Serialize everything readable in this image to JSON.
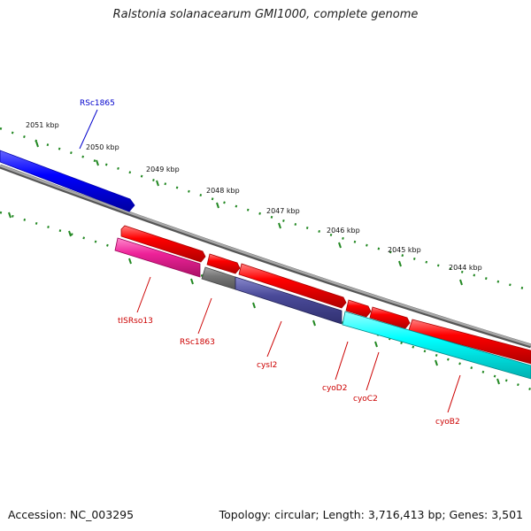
{
  "title": "Ralstonia solanacearum GMI1000, complete genome",
  "footer": {
    "accession": "Accession: NC_003295",
    "summary": "Topology: circular; Length: 3,716,413 bp; Genes: 3,501"
  },
  "colors": {
    "cds_forward": "#ff0000",
    "cds_reverse_highlight": "#00ffff",
    "gene_blue": "#0000ff",
    "gene_magenta": "#ee2299",
    "gene_grey": "#777777",
    "gene_slate": "#4a4a99",
    "backbone": "#888888",
    "tick": "#228822"
  },
  "scale_labels": [
    "2051 kbp",
    "2050 kbp",
    "2049 kbp",
    "2048 kbp",
    "2047 kbp",
    "2046 kbp",
    "2045 kbp",
    "2044 kbp"
  ],
  "genes": [
    {
      "label": "RSc1865",
      "color": "blue"
    },
    {
      "label": "tISRso13",
      "color": "red"
    },
    {
      "label": "RSc1863",
      "color": "red"
    },
    {
      "label": "cysI2",
      "color": "red"
    },
    {
      "label": "cyoD2",
      "color": "red"
    },
    {
      "label": "cyoC2",
      "color": "red"
    },
    {
      "label": "cyoB2",
      "color": "red"
    }
  ]
}
